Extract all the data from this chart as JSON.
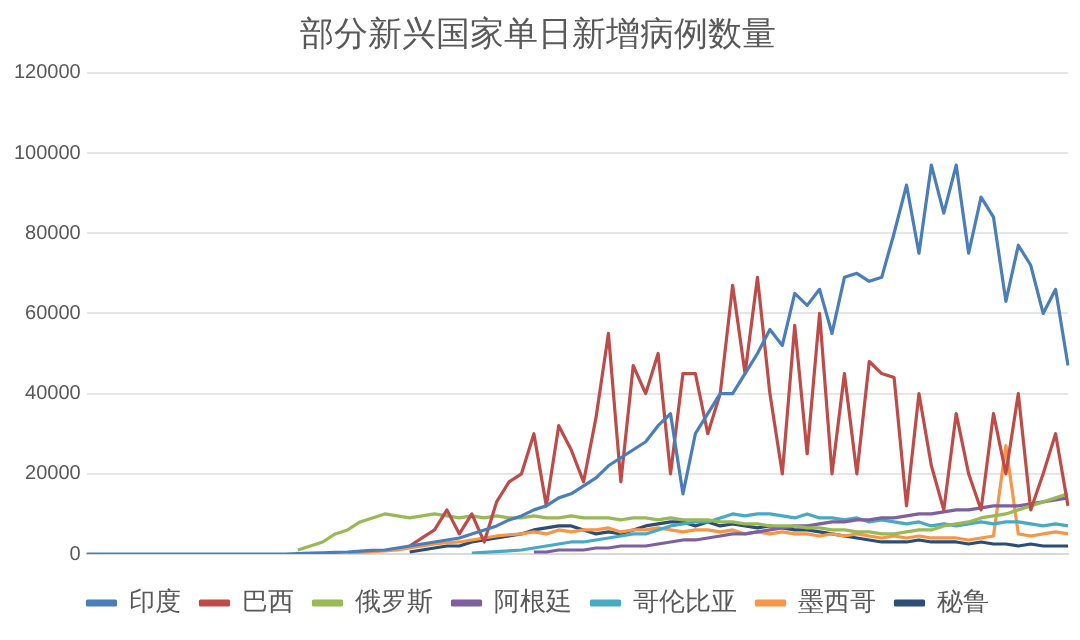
{
  "chart_data": {
    "type": "line",
    "title": "部分新兴国家单日新增病例数量",
    "categories": [
      null,
      null,
      null,
      null,
      null,
      null,
      null,
      null,
      null,
      null,
      null,
      null,
      null,
      null,
      null,
      null,
      null,
      null,
      null,
      null,
      null,
      null,
      null,
      null,
      null,
      null,
      null,
      null,
      null,
      null,
      null,
      null,
      null,
      null,
      null,
      null,
      null,
      null,
      null,
      null,
      null,
      null,
      null,
      null,
      null,
      null,
      null,
      null,
      null,
      null,
      null,
      null,
      null,
      null,
      null,
      null,
      null,
      null,
      null,
      null,
      null,
      null,
      null,
      null,
      null,
      null,
      null,
      null,
      null,
      null,
      null,
      null,
      null,
      null,
      null,
      null,
      null,
      null,
      null,
      null
    ],
    "series": [
      {
        "name": "印度",
        "color": "#4a7ebb",
        "values": [
          0,
          0,
          0,
          0,
          0,
          0,
          0,
          0,
          0,
          0,
          0,
          0,
          0,
          0,
          0,
          0,
          0,
          100,
          200,
          300,
          400,
          500,
          700,
          900,
          1000,
          1500,
          2000,
          2500,
          3000,
          3500,
          4000,
          5000,
          6000,
          7000,
          8500,
          9500,
          11000,
          12000,
          14000,
          15000,
          17000,
          19000,
          22000,
          24000,
          26000,
          28000,
          32000,
          35000,
          15000,
          30000,
          35000,
          40000,
          40000,
          45000,
          50000,
          56000,
          52000,
          65000,
          62000,
          66000,
          55000,
          69000,
          70000,
          68000,
          69000,
          80000,
          92000,
          75000,
          97000,
          85000,
          97000,
          75000,
          89000,
          84000,
          63000,
          77000,
          72000,
          60000,
          66000,
          47000
        ]
      },
      {
        "name": "巴西",
        "color": "#be4b48",
        "values": [
          null,
          null,
          null,
          null,
          null,
          null,
          null,
          null,
          null,
          null,
          null,
          null,
          null,
          null,
          null,
          null,
          null,
          null,
          null,
          null,
          null,
          null,
          null,
          null,
          null,
          null,
          2000,
          4000,
          6000,
          11000,
          5000,
          10000,
          3000,
          13000,
          18000,
          20000,
          30000,
          12000,
          32000,
          26000,
          18000,
          34000,
          55000,
          18000,
          47000,
          40000,
          50000,
          20000,
          45000,
          45000,
          30000,
          40000,
          67000,
          45000,
          69000,
          40000,
          20000,
          57000,
          25000,
          60000,
          20000,
          45000,
          20000,
          48000,
          45000,
          44000,
          12000,
          40000,
          22000,
          11000,
          35000,
          20000,
          11000,
          35000,
          20000,
          40000,
          11000,
          20000,
          30000,
          12000
        ]
      },
      {
        "name": "俄罗斯",
        "color": "#98b954",
        "values": [
          null,
          null,
          null,
          null,
          null,
          null,
          null,
          null,
          null,
          null,
          null,
          null,
          null,
          null,
          null,
          null,
          null,
          1000,
          2000,
          3000,
          5000,
          6000,
          8000,
          9000,
          10000,
          9500,
          9000,
          9500,
          10000,
          9500,
          9000,
          9500,
          9000,
          9500,
          9000,
          9000,
          9500,
          9000,
          9000,
          9500,
          9000,
          9000,
          9000,
          8500,
          9000,
          9000,
          8500,
          9000,
          8500,
          8500,
          8500,
          8000,
          8000,
          7500,
          7500,
          7000,
          7000,
          7000,
          6500,
          6500,
          6000,
          6000,
          5500,
          5500,
          5000,
          5000,
          5500,
          6000,
          6000,
          7000,
          7500,
          8000,
          9000,
          9500,
          10000,
          11000,
          12000,
          13000,
          14000,
          15000
        ]
      },
      {
        "name": "阿根廷",
        "color": "#7d60a0",
        "values": [
          null,
          null,
          null,
          null,
          null,
          null,
          null,
          null,
          null,
          null,
          null,
          null,
          null,
          null,
          null,
          null,
          null,
          null,
          null,
          null,
          null,
          null,
          null,
          null,
          null,
          null,
          null,
          null,
          null,
          null,
          null,
          null,
          null,
          null,
          null,
          null,
          500,
          500,
          1000,
          1000,
          1000,
          1500,
          1500,
          2000,
          2000,
          2000,
          2500,
          3000,
          3500,
          3500,
          4000,
          4500,
          5000,
          5000,
          5500,
          6000,
          6500,
          7000,
          7000,
          7500,
          8000,
          8000,
          8500,
          8500,
          9000,
          9000,
          9500,
          10000,
          10000,
          10500,
          11000,
          11000,
          11500,
          12000,
          12000,
          12000,
          12500,
          13000,
          13500,
          14000
        ]
      },
      {
        "name": "哥伦比亚",
        "color": "#46aac5",
        "values": [
          null,
          null,
          null,
          null,
          null,
          null,
          null,
          null,
          null,
          null,
          null,
          null,
          null,
          null,
          null,
          null,
          null,
          null,
          null,
          null,
          null,
          null,
          null,
          null,
          null,
          null,
          null,
          null,
          null,
          null,
          null,
          200,
          400,
          600,
          800,
          1000,
          1500,
          2000,
          2500,
          3000,
          3000,
          3500,
          4000,
          4500,
          5000,
          5000,
          6000,
          7000,
          7500,
          8000,
          8000,
          9000,
          10000,
          9500,
          10000,
          10000,
          9500,
          9000,
          10000,
          9000,
          9000,
          8500,
          9000,
          8000,
          8500,
          8000,
          7500,
          8000,
          7000,
          7500,
          7000,
          7500,
          8000,
          7500,
          8000,
          8000,
          7500,
          7000,
          7500,
          7000
        ]
      },
      {
        "name": "墨西哥",
        "color": "#f79646",
        "values": [
          null,
          null,
          null,
          null,
          null,
          null,
          null,
          null,
          null,
          null,
          null,
          null,
          null,
          null,
          null,
          null,
          null,
          null,
          null,
          null,
          null,
          200,
          400,
          600,
          800,
          1000,
          1500,
          2000,
          2500,
          2800,
          3000,
          3500,
          4000,
          4500,
          4800,
          5000,
          5500,
          5000,
          6000,
          5500,
          6000,
          6000,
          6500,
          5500,
          6000,
          6000,
          6500,
          6000,
          5500,
          6000,
          6000,
          5500,
          6000,
          5000,
          5500,
          5000,
          5500,
          5000,
          5000,
          4500,
          5000,
          4500,
          5000,
          4500,
          4000,
          4500,
          4000,
          4500,
          4000,
          4000,
          4000,
          3500,
          4000,
          4500,
          27000,
          5000,
          4500,
          5000,
          5500,
          5000
        ]
      },
      {
        "name": "秘鲁",
        "color": "#2c4d75",
        "values": [
          null,
          null,
          null,
          null,
          null,
          null,
          null,
          null,
          null,
          null,
          null,
          null,
          null,
          null,
          null,
          null,
          null,
          null,
          null,
          null,
          null,
          null,
          null,
          null,
          null,
          null,
          500,
          1000,
          1500,
          2000,
          2000,
          3000,
          3500,
          4000,
          4500,
          5000,
          6000,
          6500,
          7000,
          7000,
          6000,
          5000,
          5500,
          5000,
          6000,
          7000,
          7500,
          8000,
          8000,
          7000,
          8000,
          7000,
          7500,
          7000,
          6500,
          7000,
          6500,
          6000,
          6000,
          5500,
          5000,
          4500,
          4000,
          3500,
          3000,
          3000,
          3000,
          3500,
          3000,
          3000,
          3000,
          2500,
          3000,
          2500,
          2500,
          2000,
          2500,
          2000,
          2000,
          2000
        ]
      }
    ],
    "ylim": [
      0,
      120000
    ],
    "yticks": [
      0,
      20000,
      40000,
      60000,
      80000,
      100000,
      120000
    ],
    "grid": "y",
    "legend": "bottom",
    "tick_labels": "y",
    "marker": "none",
    "line_style": "solid"
  }
}
